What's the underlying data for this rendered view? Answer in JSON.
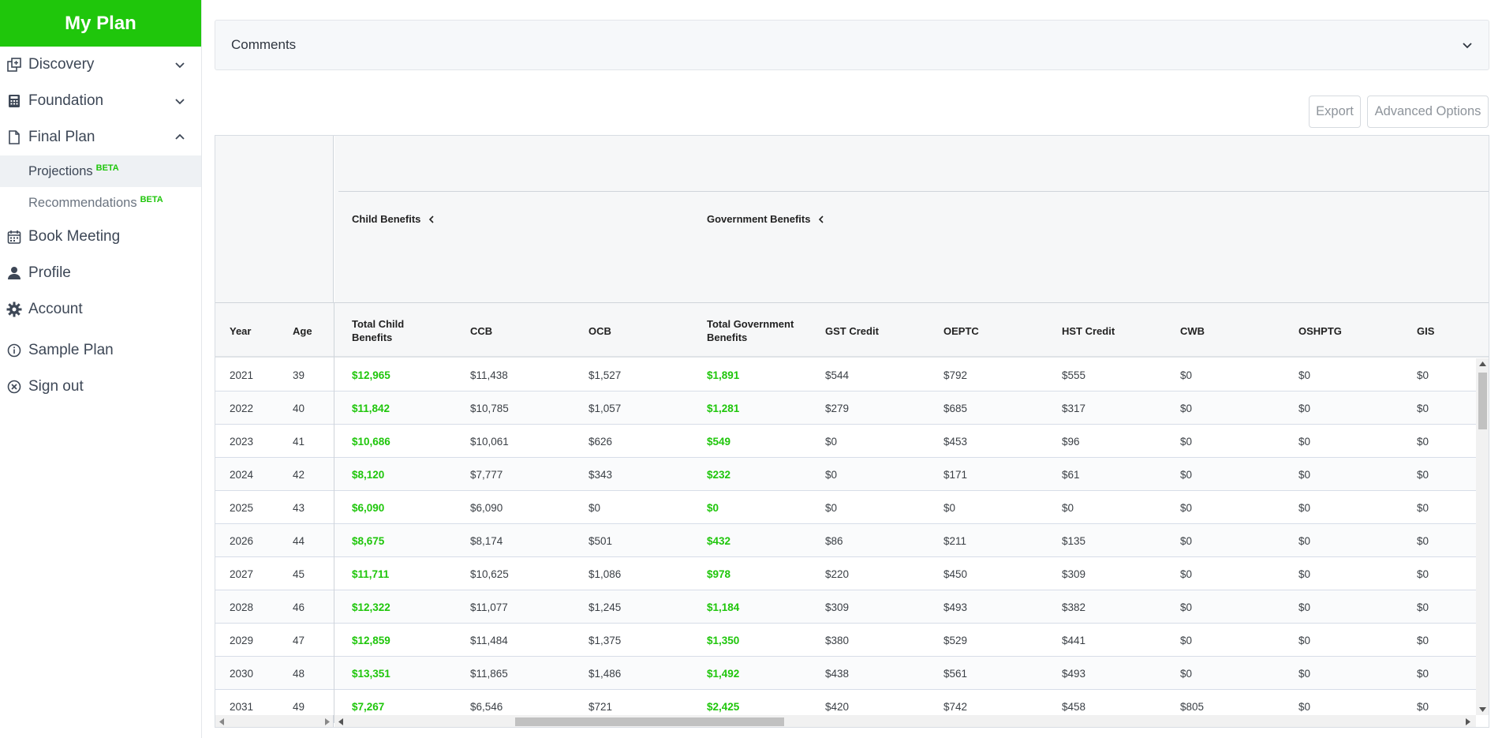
{
  "sidebar": {
    "brand": "My Plan",
    "items": [
      {
        "label": "Discovery"
      },
      {
        "label": "Foundation"
      },
      {
        "label": "Final Plan"
      },
      {
        "label": "Book Meeting"
      },
      {
        "label": "Profile"
      },
      {
        "label": "Account"
      },
      {
        "label": "Sample Plan"
      },
      {
        "label": "Sign out"
      }
    ],
    "sub_items": [
      {
        "label": "Projections",
        "badge": "BETA"
      },
      {
        "label": "Recommendations",
        "badge": "BETA"
      }
    ]
  },
  "comments": {
    "label": "Comments"
  },
  "toolbar": {
    "export_label": "Export",
    "advanced_label": "Advanced Options"
  },
  "table": {
    "groups": [
      {
        "label": "Child Benefits"
      },
      {
        "label": "Government Benefits"
      }
    ],
    "columns": [
      "Year",
      "Age",
      "Total Child Benefits",
      "CCB",
      "OCB",
      "Total Government Benefits",
      "GST Credit",
      "OEPTC",
      "HST Credit",
      "CWB",
      "OSHPTG",
      "GIS"
    ],
    "rows": [
      [
        "2021",
        "39",
        "$12,965",
        "$11,438",
        "$1,527",
        "$1,891",
        "$544",
        "$792",
        "$555",
        "$0",
        "$0",
        "$0"
      ],
      [
        "2022",
        "40",
        "$11,842",
        "$10,785",
        "$1,057",
        "$1,281",
        "$279",
        "$685",
        "$317",
        "$0",
        "$0",
        "$0"
      ],
      [
        "2023",
        "41",
        "$10,686",
        "$10,061",
        "$626",
        "$549",
        "$0",
        "$453",
        "$96",
        "$0",
        "$0",
        "$0"
      ],
      [
        "2024",
        "42",
        "$8,120",
        "$7,777",
        "$343",
        "$232",
        "$0",
        "$171",
        "$61",
        "$0",
        "$0",
        "$0"
      ],
      [
        "2025",
        "43",
        "$6,090",
        "$6,090",
        "$0",
        "$0",
        "$0",
        "$0",
        "$0",
        "$0",
        "$0",
        "$0"
      ],
      [
        "2026",
        "44",
        "$8,675",
        "$8,174",
        "$501",
        "$432",
        "$86",
        "$211",
        "$135",
        "$0",
        "$0",
        "$0"
      ],
      [
        "2027",
        "45",
        "$11,711",
        "$10,625",
        "$1,086",
        "$978",
        "$220",
        "$450",
        "$309",
        "$0",
        "$0",
        "$0"
      ],
      [
        "2028",
        "46",
        "$12,322",
        "$11,077",
        "$1,245",
        "$1,184",
        "$309",
        "$493",
        "$382",
        "$0",
        "$0",
        "$0"
      ],
      [
        "2029",
        "47",
        "$12,859",
        "$11,484",
        "$1,375",
        "$1,350",
        "$380",
        "$529",
        "$441",
        "$0",
        "$0",
        "$0"
      ],
      [
        "2030",
        "48",
        "$13,351",
        "$11,865",
        "$1,486",
        "$1,492",
        "$438",
        "$561",
        "$493",
        "$0",
        "$0",
        "$0"
      ],
      [
        "2031",
        "49",
        "$7,267",
        "$6,546",
        "$721",
        "$2,425",
        "$420",
        "$742",
        "$458",
        "$805",
        "$0",
        "$0"
      ]
    ],
    "highlight_columns": [
      2,
      5
    ],
    "highlight_color": "#1fc60b"
  },
  "colors": {
    "brand": "#1fc60b",
    "badge": "#1fc60b"
  }
}
